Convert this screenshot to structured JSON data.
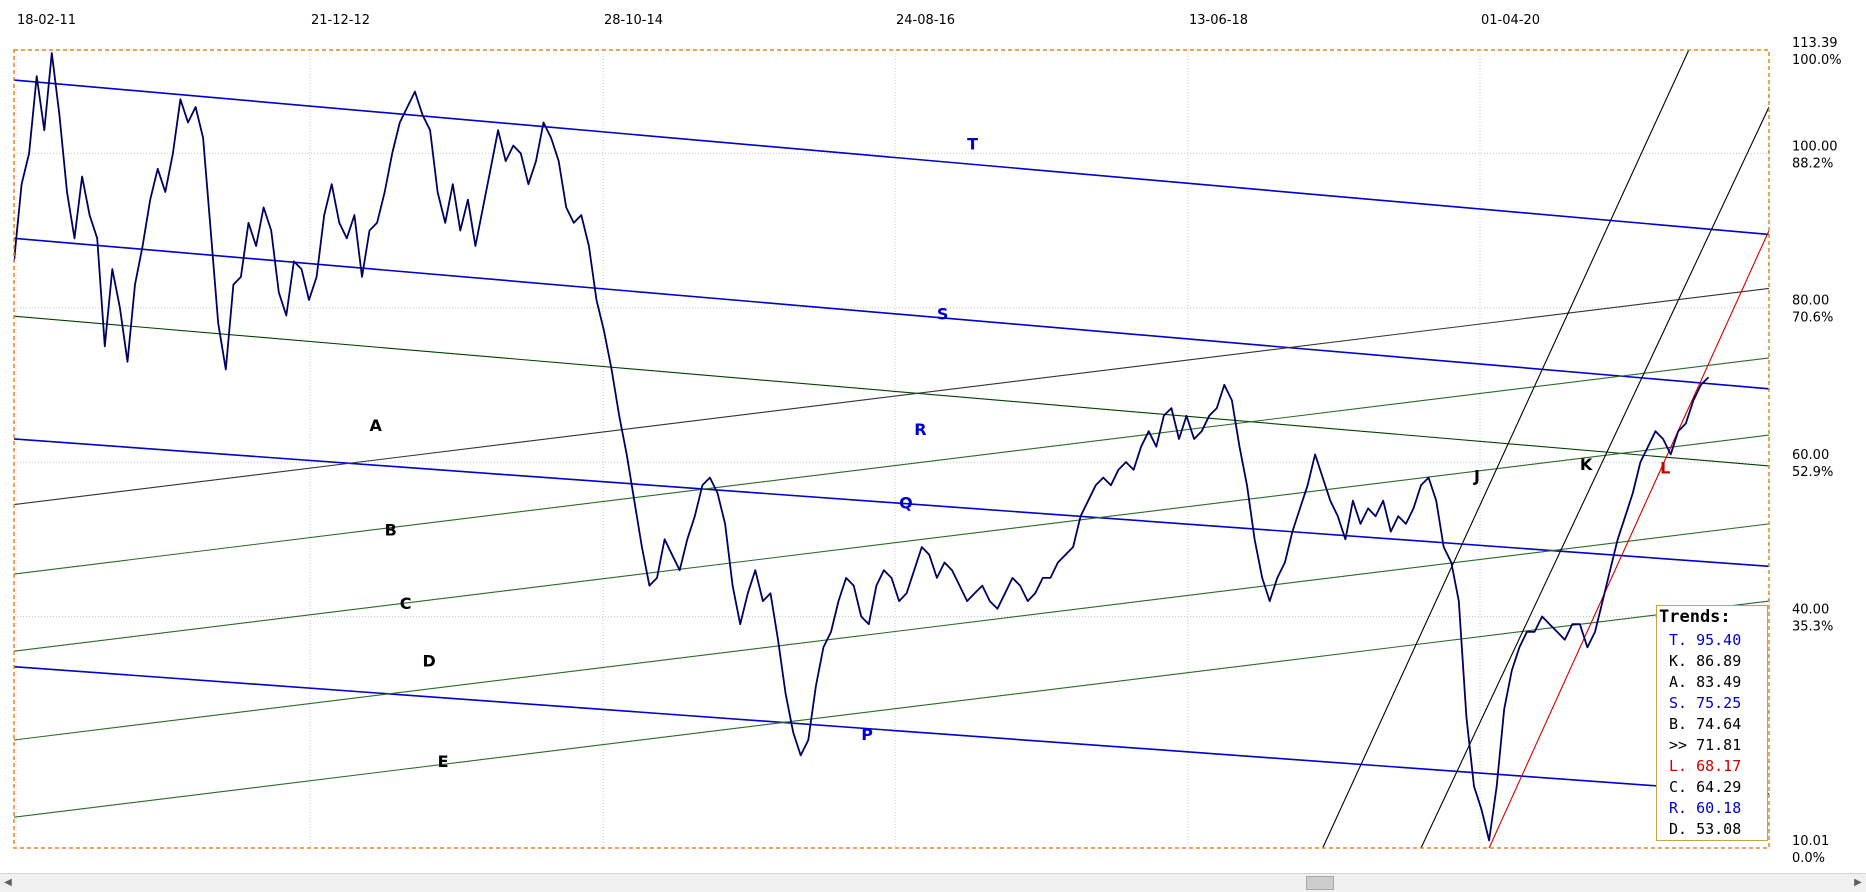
{
  "chart_data": {
    "type": "line",
    "title": "",
    "date_labels": [
      "18-02-11",
      "21-12-12",
      "28-10-14",
      "24-08-16",
      "13-06-18",
      "01-04-20"
    ],
    "right_axis": [
      {
        "value": "113.39",
        "pct": "100.0%"
      },
      {
        "value": "100.00",
        "pct": "88.2%"
      },
      {
        "value": "80.00",
        "pct": "70.6%"
      },
      {
        "value": "60.00",
        "pct": "52.9%"
      },
      {
        "value": "40.00",
        "pct": "35.3%"
      },
      {
        "value": "10.01",
        "pct": "0.0%"
      }
    ],
    "ylim": [
      10.01,
      113.39
    ],
    "x_range_months": [
      0,
      116
    ],
    "series": [
      {
        "color": "#000060",
        "points": [
          [
            0,
            86
          ],
          [
            0.5,
            96
          ],
          [
            1,
            100
          ],
          [
            1.5,
            110
          ],
          [
            2,
            103
          ],
          [
            2.5,
            113
          ],
          [
            3,
            105
          ],
          [
            3.5,
            95
          ],
          [
            4,
            89
          ],
          [
            4.5,
            97
          ],
          [
            5,
            92
          ],
          [
            5.5,
            89
          ],
          [
            6,
            75
          ],
          [
            6.5,
            85
          ],
          [
            7,
            80
          ],
          [
            7.5,
            73
          ],
          [
            8,
            83
          ],
          [
            8.5,
            88
          ],
          [
            9,
            94
          ],
          [
            9.5,
            98
          ],
          [
            10,
            95
          ],
          [
            10.5,
            100
          ],
          [
            11,
            107
          ],
          [
            11.5,
            104
          ],
          [
            12,
            106
          ],
          [
            12.5,
            102
          ],
          [
            13,
            90
          ],
          [
            13.5,
            78
          ],
          [
            14,
            72
          ],
          [
            14.5,
            83
          ],
          [
            15,
            84
          ],
          [
            15.5,
            91
          ],
          [
            16,
            88
          ],
          [
            16.5,
            93
          ],
          [
            17,
            90
          ],
          [
            17.5,
            82
          ],
          [
            18,
            79
          ],
          [
            18.5,
            86
          ],
          [
            19,
            85
          ],
          [
            19.5,
            81
          ],
          [
            20,
            84
          ],
          [
            20.5,
            92
          ],
          [
            21,
            96
          ],
          [
            21.5,
            91
          ],
          [
            22,
            89
          ],
          [
            22.5,
            92
          ],
          [
            23,
            84
          ],
          [
            23.5,
            90
          ],
          [
            24,
            91
          ],
          [
            24.5,
            95
          ],
          [
            25,
            100
          ],
          [
            25.5,
            104
          ],
          [
            26,
            106
          ],
          [
            26.5,
            108
          ],
          [
            27,
            105
          ],
          [
            27.5,
            103
          ],
          [
            28,
            95
          ],
          [
            28.5,
            91
          ],
          [
            29,
            96
          ],
          [
            29.5,
            90
          ],
          [
            30,
            94
          ],
          [
            30.5,
            88
          ],
          [
            31,
            93
          ],
          [
            31.5,
            98
          ],
          [
            32,
            103
          ],
          [
            32.5,
            99
          ],
          [
            33,
            101
          ],
          [
            33.5,
            100
          ],
          [
            34,
            96
          ],
          [
            34.5,
            99
          ],
          [
            35,
            104
          ],
          [
            35.5,
            102
          ],
          [
            36,
            99
          ],
          [
            36.5,
            93
          ],
          [
            37,
            91
          ],
          [
            37.5,
            92
          ],
          [
            38,
            88
          ],
          [
            38.5,
            81
          ],
          [
            39,
            77
          ],
          [
            39.5,
            72
          ],
          [
            40,
            66
          ],
          [
            40.5,
            61
          ],
          [
            41,
            55
          ],
          [
            41.5,
            49
          ],
          [
            42,
            44
          ],
          [
            42.5,
            45
          ],
          [
            43,
            50
          ],
          [
            43.5,
            48
          ],
          [
            44,
            46
          ],
          [
            44.5,
            50
          ],
          [
            45,
            53
          ],
          [
            45.5,
            57
          ],
          [
            46,
            58
          ],
          [
            46.5,
            56
          ],
          [
            47,
            52
          ],
          [
            47.5,
            44
          ],
          [
            48,
            39
          ],
          [
            48.5,
            43
          ],
          [
            49,
            46
          ],
          [
            49.5,
            42
          ],
          [
            50,
            43
          ],
          [
            50.5,
            37
          ],
          [
            51,
            30
          ],
          [
            51.5,
            25
          ],
          [
            52,
            22
          ],
          [
            52.5,
            24
          ],
          [
            53,
            31
          ],
          [
            53.5,
            36
          ],
          [
            54,
            38
          ],
          [
            54.5,
            42
          ],
          [
            55,
            45
          ],
          [
            55.5,
            44
          ],
          [
            56,
            40
          ],
          [
            56.5,
            39
          ],
          [
            57,
            44
          ],
          [
            57.5,
            46
          ],
          [
            58,
            45
          ],
          [
            58.5,
            42
          ],
          [
            59,
            43
          ],
          [
            59.5,
            46
          ],
          [
            60,
            49
          ],
          [
            60.5,
            48
          ],
          [
            61,
            45
          ],
          [
            61.5,
            47
          ],
          [
            62,
            46
          ],
          [
            62.5,
            44
          ],
          [
            63,
            42
          ],
          [
            63.5,
            43
          ],
          [
            64,
            44
          ],
          [
            64.5,
            42
          ],
          [
            65,
            41
          ],
          [
            65.5,
            43
          ],
          [
            66,
            45
          ],
          [
            66.5,
            44
          ],
          [
            67,
            42
          ],
          [
            67.5,
            43
          ],
          [
            68,
            45
          ],
          [
            68.5,
            45
          ],
          [
            69,
            47
          ],
          [
            69.5,
            48
          ],
          [
            70,
            49
          ],
          [
            70.5,
            53
          ],
          [
            71,
            55
          ],
          [
            71.5,
            57
          ],
          [
            72,
            58
          ],
          [
            72.5,
            57
          ],
          [
            73,
            59
          ],
          [
            73.5,
            60
          ],
          [
            74,
            59
          ],
          [
            74.5,
            62
          ],
          [
            75,
            64
          ],
          [
            75.5,
            62
          ],
          [
            76,
            66
          ],
          [
            76.5,
            67
          ],
          [
            77,
            63
          ],
          [
            77.5,
            66
          ],
          [
            78,
            63
          ],
          [
            78.5,
            64
          ],
          [
            79,
            66
          ],
          [
            79.5,
            67
          ],
          [
            80,
            70
          ],
          [
            80.5,
            68
          ],
          [
            81,
            62
          ],
          [
            81.5,
            57
          ],
          [
            82,
            50
          ],
          [
            82.5,
            45
          ],
          [
            83,
            42
          ],
          [
            83.5,
            45
          ],
          [
            84,
            47
          ],
          [
            84.5,
            51
          ],
          [
            85,
            54
          ],
          [
            85.5,
            57
          ],
          [
            86,
            61
          ],
          [
            86.5,
            58
          ],
          [
            87,
            55
          ],
          [
            87.5,
            53
          ],
          [
            88,
            50
          ],
          [
            88.5,
            55
          ],
          [
            89,
            52
          ],
          [
            89.5,
            54
          ],
          [
            90,
            53
          ],
          [
            90.5,
            55
          ],
          [
            91,
            51
          ],
          [
            91.5,
            53
          ],
          [
            92,
            52
          ],
          [
            92.5,
            54
          ],
          [
            93,
            57
          ],
          [
            93.5,
            58
          ],
          [
            94,
            55
          ],
          [
            94.5,
            49
          ],
          [
            95,
            47
          ],
          [
            95.5,
            42
          ],
          [
            96,
            27
          ],
          [
            96.5,
            18
          ],
          [
            97,
            15
          ],
          [
            97.5,
            11
          ],
          [
            98,
            18
          ],
          [
            98.5,
            28
          ],
          [
            99,
            33
          ],
          [
            99.5,
            36
          ],
          [
            100,
            38
          ],
          [
            100.5,
            38
          ],
          [
            101,
            40
          ],
          [
            101.5,
            39
          ],
          [
            102,
            38
          ],
          [
            102.5,
            37
          ],
          [
            103,
            39
          ],
          [
            103.5,
            39
          ],
          [
            104,
            36
          ],
          [
            104.5,
            38
          ],
          [
            105,
            42
          ],
          [
            105.5,
            46
          ],
          [
            106,
            50
          ],
          [
            106.5,
            53
          ],
          [
            107,
            56
          ],
          [
            107.5,
            60
          ],
          [
            108,
            62
          ],
          [
            108.5,
            64
          ],
          [
            109,
            63
          ],
          [
            109.5,
            61
          ],
          [
            110,
            64
          ],
          [
            110.5,
            65
          ],
          [
            111,
            68
          ],
          [
            111.5,
            70
          ],
          [
            112,
            71
          ]
        ]
      }
    ],
    "trend_lines": [
      {
        "name": "T",
        "color": "#0000cc",
        "p1": [
          0,
          109.5
        ],
        "p2": [
          116,
          89.5
        ],
        "label_at": [
          63,
          100.5
        ]
      },
      {
        "name": "S",
        "color": "#0000cc",
        "p1": [
          0,
          89
        ],
        "p2": [
          116,
          69.5
        ],
        "label_at": [
          61,
          78.5
        ]
      },
      {
        "name": "R",
        "color": "#0000cc",
        "p1": [
          0,
          78.9
        ],
        "p2": [
          116,
          59.5
        ],
        "label_at": [
          59.5,
          63.5
        ],
        "stroke": "#004000"
      },
      {
        "name": "Q",
        "color": "#0000cc",
        "p1": [
          0,
          63
        ],
        "p2": [
          116,
          46.5
        ],
        "label_at": [
          58.5,
          54
        ]
      },
      {
        "name": "P",
        "color": "#0000cc",
        "p1": [
          0,
          33.5
        ],
        "p2": [
          116,
          17
        ],
        "label_at": [
          56,
          24
        ]
      },
      {
        "name": "A",
        "color": "#000000",
        "p1": [
          0,
          54.5
        ],
        "p2": [
          116,
          82.5
        ],
        "label_at": [
          23.5,
          64
        ],
        "stroke": "#333333"
      },
      {
        "name": "B",
        "color": "#000000",
        "p1": [
          0,
          45.5
        ],
        "p2": [
          116,
          73.5
        ],
        "label_at": [
          24.5,
          50.5
        ],
        "stroke": "#2a6a2a"
      },
      {
        "name": "C",
        "color": "#000000",
        "p1": [
          0,
          35.5
        ],
        "p2": [
          116,
          63.5
        ],
        "label_at": [
          25.5,
          41
        ],
        "stroke": "#2a6a2a"
      },
      {
        "name": "D",
        "color": "#000000",
        "p1": [
          0,
          24
        ],
        "p2": [
          116,
          52
        ],
        "label_at": [
          27,
          33.5
        ],
        "stroke": "#2a6a2a"
      },
      {
        "name": "E",
        "color": "#000000",
        "p1": [
          0,
          14
        ],
        "p2": [
          116,
          42
        ],
        "label_at": [
          28,
          20.5
        ],
        "stroke": "#2a6a2a"
      },
      {
        "name": "J",
        "color": "#000000",
        "p1": [
          86.5,
          10.01
        ],
        "p2": [
          110.7,
          113.39
        ],
        "label_at": [
          96.5,
          57.5
        ]
      },
      {
        "name": "K",
        "color": "#000000",
        "p1": [
          93,
          10.01
        ],
        "p2": [
          116,
          106
        ],
        "label_at": [
          103.5,
          59
        ]
      },
      {
        "name": "L",
        "color": "#cc0000",
        "p1": [
          97.5,
          10.01
        ],
        "p2": [
          116,
          90
        ],
        "label_at": [
          108.8,
          58.5
        ]
      }
    ]
  },
  "trends_box": {
    "title": "Trends:",
    "rows": [
      {
        "key": "T.",
        "value": "95.40",
        "color": "#0000cc"
      },
      {
        "key": "K.",
        "value": "86.89",
        "color": "#000000"
      },
      {
        "key": "A.",
        "value": "83.49",
        "color": "#000000"
      },
      {
        "key": "S.",
        "value": "75.25",
        "color": "#0000cc"
      },
      {
        "key": "B.",
        "value": "74.64",
        "color": "#000000"
      },
      {
        "key": ">>",
        "value": "71.81",
        "color": "#000000"
      },
      {
        "key": "L.",
        "value": "68.17",
        "color": "#cc0000"
      },
      {
        "key": "C.",
        "value": "64.29",
        "color": "#000000"
      },
      {
        "key": "R.",
        "value": "60.18",
        "color": "#0000cc"
      },
      {
        "key": "D.",
        "value": "53.08",
        "color": "#000000"
      }
    ]
  },
  "scrollbar": {
    "left_arrow": "◀",
    "right_arrow": "▶"
  }
}
